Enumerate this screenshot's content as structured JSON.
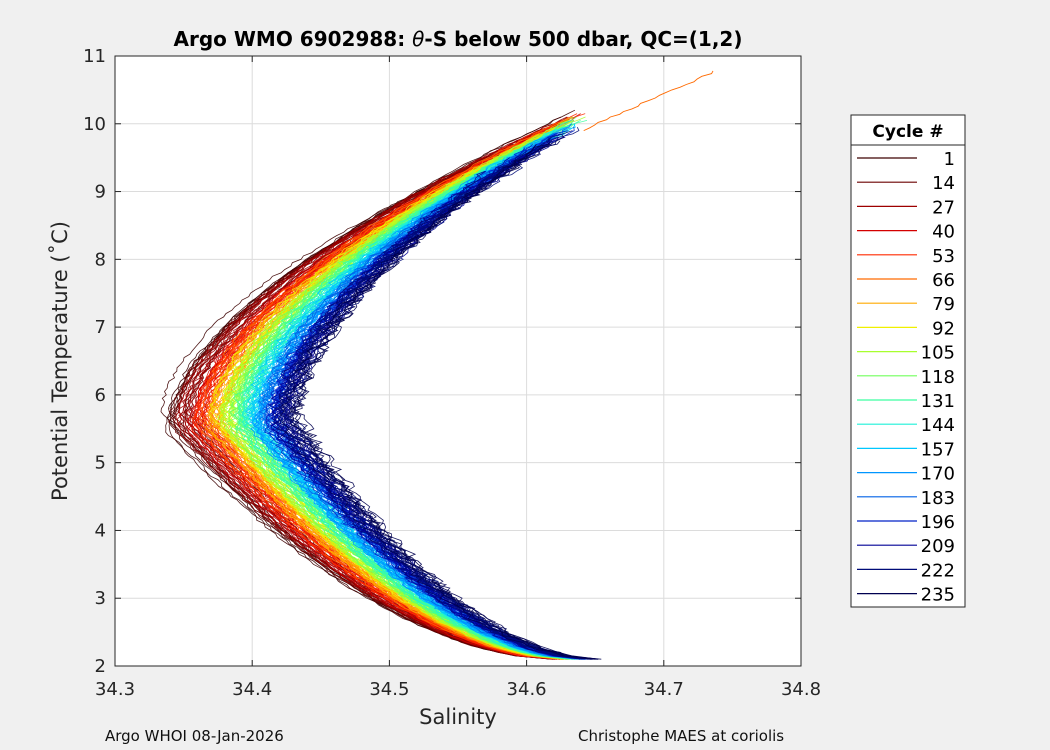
{
  "chart_data": {
    "type": "line",
    "title_prefix": "Argo WMO 6902988: ",
    "title_theta": "θ",
    "title_suffix": "-S below 500 dbar,  QC=(1,2)",
    "xlabel": "Salinity",
    "ylabel": "Potential Temperature (˚C)",
    "xlim": [
      34.3,
      34.8
    ],
    "ylim": [
      2,
      11
    ],
    "xticks": [
      "34.3",
      "34.4",
      "34.5",
      "34.6",
      "34.7",
      "34.8"
    ],
    "yticks": [
      "2",
      "3",
      "4",
      "5",
      "6",
      "7",
      "8",
      "9",
      "10",
      "11"
    ],
    "grid": true,
    "legend": {
      "title": "Cycle #",
      "placement": "right-outside",
      "entries": [
        {
          "label": "1",
          "color": "#3d0000"
        },
        {
          "label": "14",
          "color": "#6b0000"
        },
        {
          "label": "27",
          "color": "#9e0000"
        },
        {
          "label": "40",
          "color": "#d40000"
        },
        {
          "label": "53",
          "color": "#ff2a00"
        },
        {
          "label": "66",
          "color": "#ff6a00"
        },
        {
          "label": "79",
          "color": "#ffaa00"
        },
        {
          "label": "92",
          "color": "#f0f000"
        },
        {
          "label": "105",
          "color": "#a8ff2e"
        },
        {
          "label": "118",
          "color": "#70ff5c"
        },
        {
          "label": "131",
          "color": "#3cffa0"
        },
        {
          "label": "144",
          "color": "#1ef0d8"
        },
        {
          "label": "157",
          "color": "#00c8ff"
        },
        {
          "label": "170",
          "color": "#0096ff"
        },
        {
          "label": "183",
          "color": "#0060e6"
        },
        {
          "label": "196",
          "color": "#0020c8"
        },
        {
          "label": "209",
          "color": "#000096"
        },
        {
          "label": "222",
          "color": "#000b78"
        },
        {
          "label": "235",
          "color": "#000050"
        }
      ]
    },
    "series_shape": {
      "top": {
        "theta": 10.8,
        "salinity": 34.74
      },
      "nose": {
        "theta": 5.6,
        "salinity_min_range": [
          34.34,
          34.43
        ]
      },
      "bottom": {
        "theta": 2.1,
        "salinity_range": [
          34.62,
          34.65
        ]
      }
    }
  },
  "footer": {
    "left": "Argo WHOI 08-Jan-2026",
    "right": "Christophe MAES at coriolis"
  }
}
